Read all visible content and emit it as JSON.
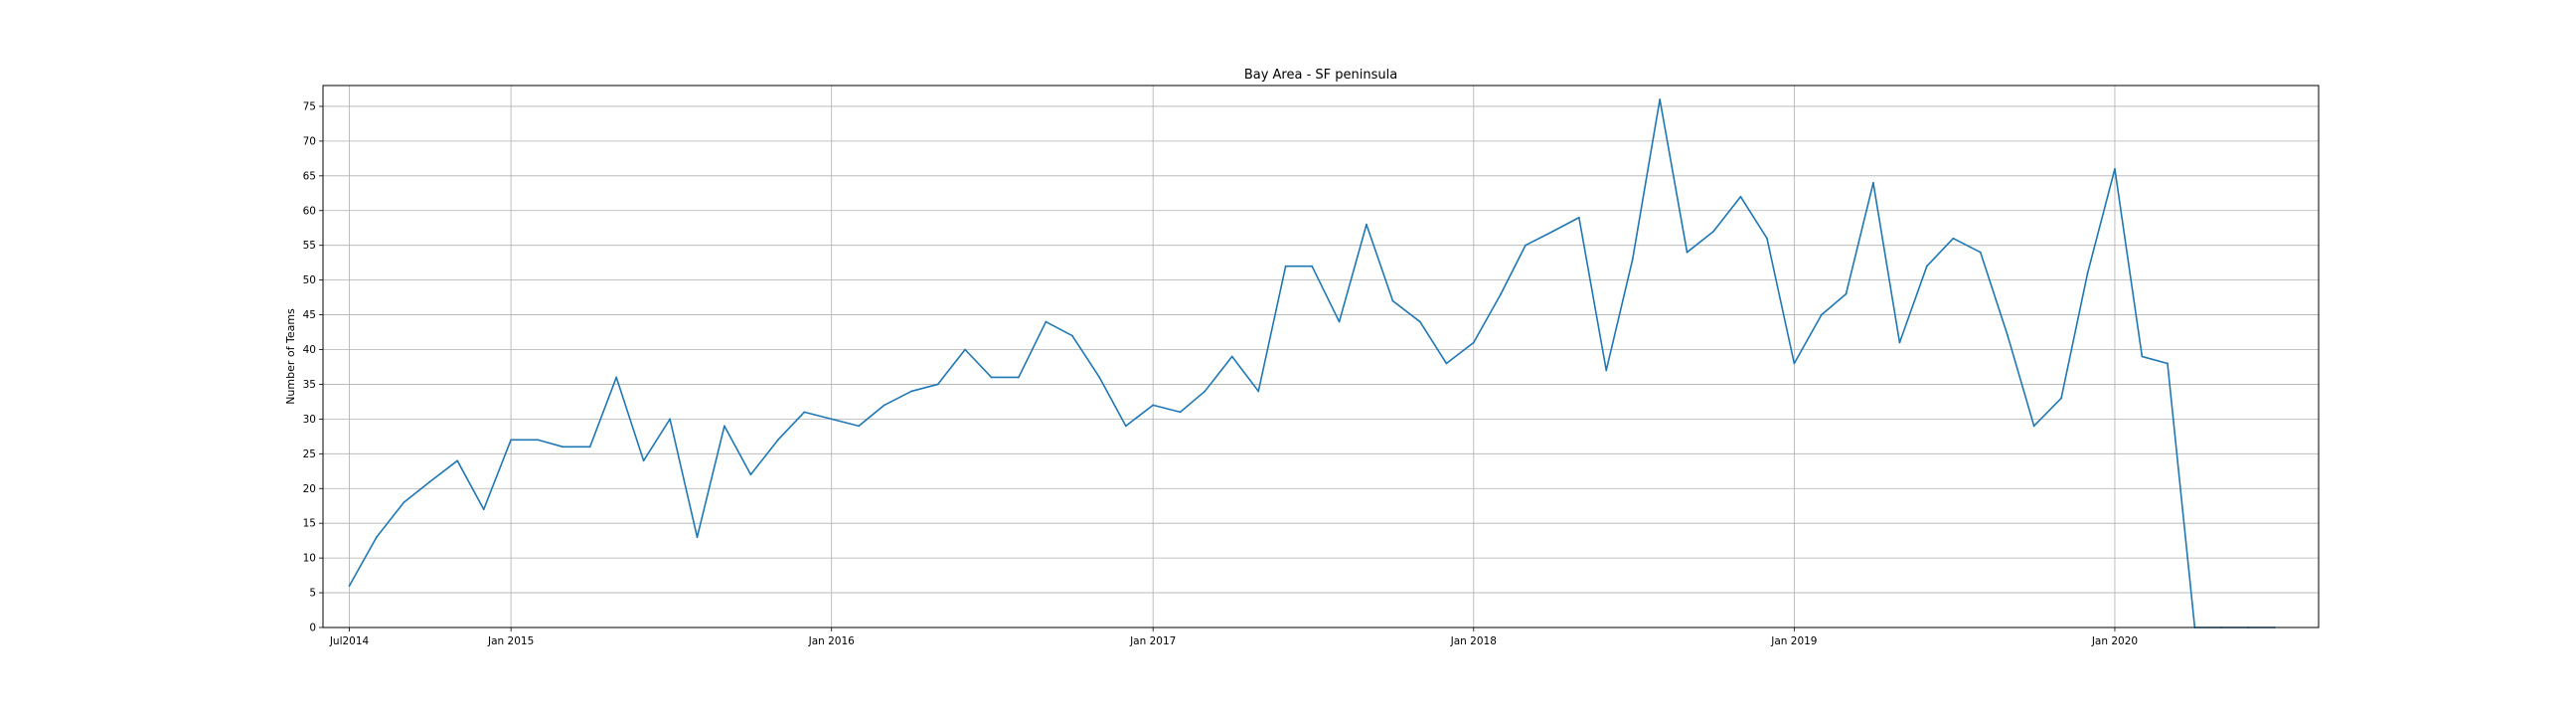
{
  "chart_data": {
    "type": "line",
    "title": "Bay Area - SF peninsula",
    "xlabel": "",
    "ylabel": "Number of Teams",
    "xlim": [
      "2014-06-01",
      "2020-08-20"
    ],
    "ylim": [
      0,
      78
    ],
    "grid": true,
    "x_ticks": [
      {
        "date": "2014-07-01",
        "label": "Jul2014"
      },
      {
        "date": "2015-01-01",
        "label": "Jan 2015"
      },
      {
        "date": "2016-01-01",
        "label": "Jan 2016"
      },
      {
        "date": "2017-01-01",
        "label": "Jan 2017"
      },
      {
        "date": "2018-01-01",
        "label": "Jan 2018"
      },
      {
        "date": "2019-01-01",
        "label": "Jan 2019"
      },
      {
        "date": "2020-01-01",
        "label": "Jan 2020"
      }
    ],
    "y_ticks": [
      0,
      5,
      10,
      15,
      20,
      25,
      30,
      35,
      40,
      45,
      50,
      55,
      60,
      65,
      70,
      75
    ],
    "series": [
      {
        "color": "#1f77b4",
        "x": [
          "2014-07-01",
          "2014-08-01",
          "2014-09-01",
          "2014-10-01",
          "2014-11-01",
          "2014-12-01",
          "2015-01-01",
          "2015-02-01",
          "2015-03-01",
          "2015-04-01",
          "2015-05-01",
          "2015-06-01",
          "2015-07-01",
          "2015-08-01",
          "2015-09-01",
          "2015-10-01",
          "2015-11-01",
          "2015-12-01",
          "2016-01-01",
          "2016-02-01",
          "2016-03-01",
          "2016-04-01",
          "2016-05-01",
          "2016-06-01",
          "2016-07-01",
          "2016-08-01",
          "2016-09-01",
          "2016-10-01",
          "2016-11-01",
          "2016-12-01",
          "2017-01-01",
          "2017-02-01",
          "2017-03-01",
          "2017-04-01",
          "2017-05-01",
          "2017-06-01",
          "2017-07-01",
          "2017-08-01",
          "2017-09-01",
          "2017-10-01",
          "2017-11-01",
          "2017-12-01",
          "2018-01-01",
          "2018-02-01",
          "2018-03-01",
          "2018-04-01",
          "2018-05-01",
          "2018-06-01",
          "2018-07-01",
          "2018-08-01",
          "2018-09-01",
          "2018-10-01",
          "2018-11-01",
          "2018-12-01",
          "2019-01-01",
          "2019-02-01",
          "2019-03-01",
          "2019-04-01",
          "2019-05-01",
          "2019-06-01",
          "2019-07-01",
          "2019-08-01",
          "2019-09-01",
          "2019-10-01",
          "2019-11-01",
          "2019-12-01",
          "2020-01-01",
          "2020-02-01",
          "2020-03-01",
          "2020-04-01",
          "2020-05-01",
          "2020-06-01",
          "2020-07-01"
        ],
        "values": [
          6,
          13,
          18,
          21,
          24,
          17,
          27,
          27,
          26,
          26,
          36,
          24,
          30,
          13,
          29,
          22,
          27,
          31,
          30,
          29,
          32,
          34,
          35,
          40,
          36,
          36,
          44,
          42,
          36,
          29,
          32,
          31,
          34,
          39,
          34,
          52,
          52,
          44,
          58,
          47,
          44,
          38,
          41,
          48,
          55,
          57,
          59,
          37,
          53,
          76,
          54,
          57,
          62,
          56,
          38,
          45,
          48,
          64,
          41,
          52,
          56,
          54,
          42,
          29,
          33,
          51,
          66,
          39,
          38,
          0,
          0,
          0,
          0
        ]
      }
    ]
  }
}
